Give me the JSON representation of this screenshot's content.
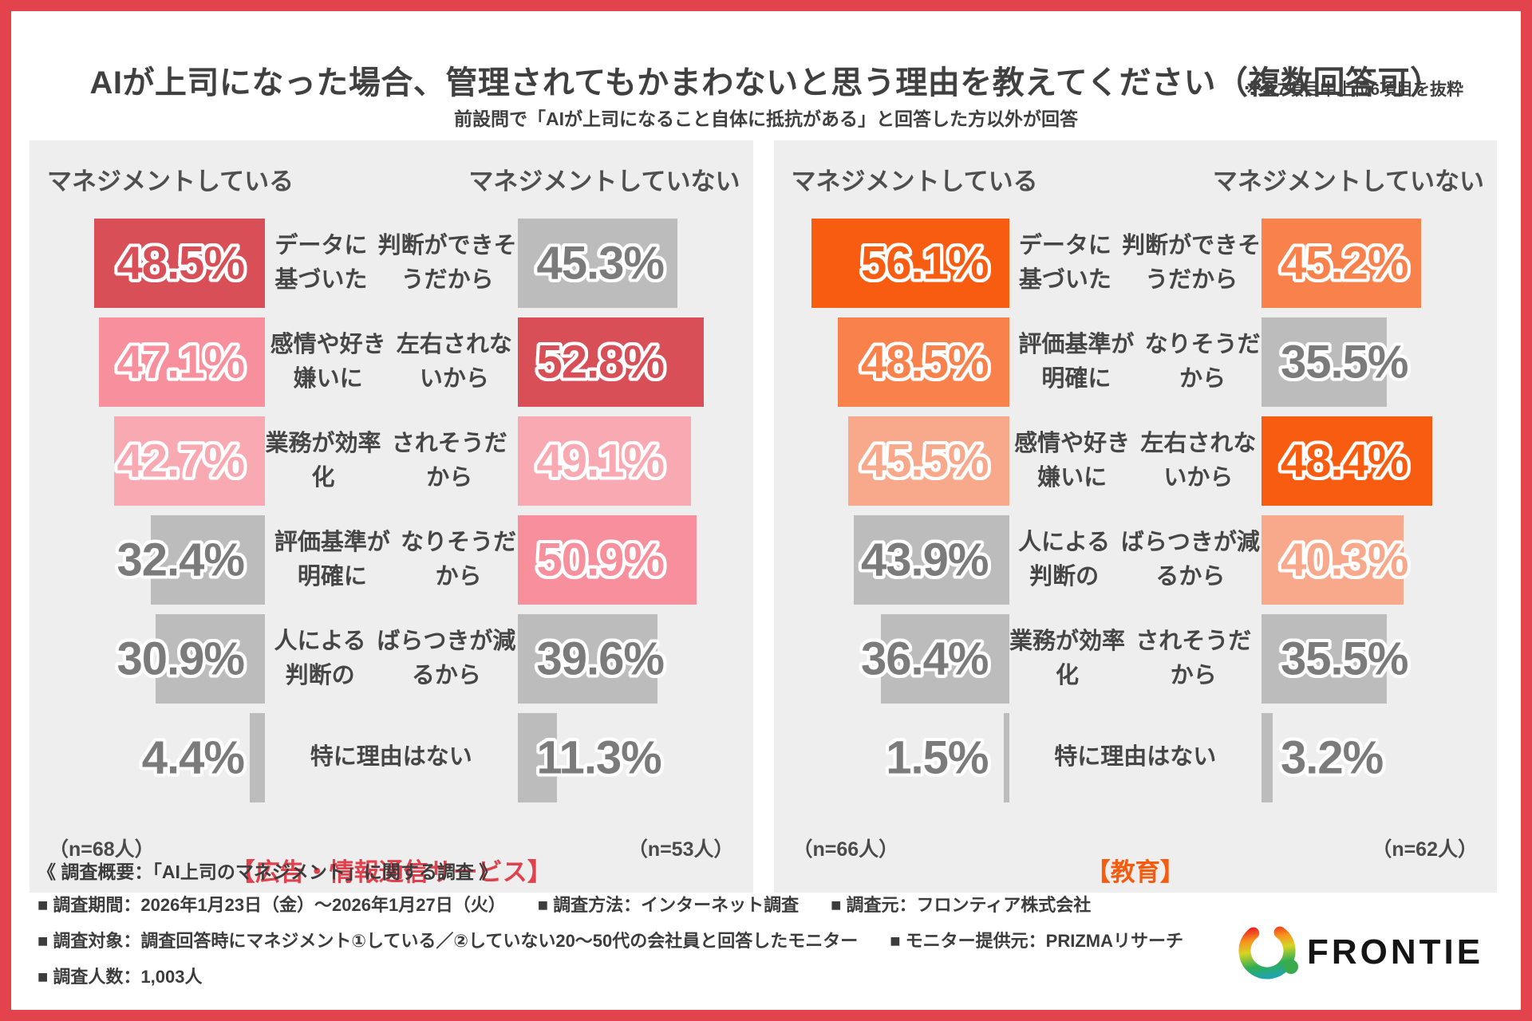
{
  "header": {
    "title": "AIが上司になった場合、管理されてもかまわないと思う理由を教えてください（複数回答可）",
    "note": "※全7項目中上位6項目を抜粋",
    "subtitle": "前設問で「AIが上司になること自体に抵抗がある」と回答した方以外が回答"
  },
  "columns": {
    "left": "マネジメントしている",
    "right": "マネジメントしていない"
  },
  "panels": [
    {
      "caption": "【広告・情報通信サービス】",
      "caption_color": "#e0414d",
      "n_left": "（n=68人）",
      "n_right": "（n=53人）",
      "palette": {
        "rank1": "#d84f58",
        "rank2": "#f78f9c",
        "rank3": "#f9a9b2",
        "gray": "#bcbcbc",
        "gray_text": "#7b7b7b"
      },
      "rows": [
        {
          "label": [
            "データに基づいた",
            "判断ができそうだから"
          ],
          "left": {
            "value": 48.5,
            "display": "48.5%",
            "tier": "rank1"
          },
          "right": {
            "value": 45.3,
            "display": "45.3%",
            "tier": "gray"
          }
        },
        {
          "label": [
            "感情や好き嫌いに",
            "左右されないから"
          ],
          "left": {
            "value": 47.1,
            "display": "47.1%",
            "tier": "rank2"
          },
          "right": {
            "value": 52.8,
            "display": "52.8%",
            "tier": "rank1"
          }
        },
        {
          "label": [
            "業務が効率化",
            "されそうだから"
          ],
          "left": {
            "value": 42.7,
            "display": "42.7%",
            "tier": "rank3"
          },
          "right": {
            "value": 49.1,
            "display": "49.1%",
            "tier": "rank3"
          }
        },
        {
          "label": [
            "評価基準が明確に",
            "なりそうだから"
          ],
          "left": {
            "value": 32.4,
            "display": "32.4%",
            "tier": "gray"
          },
          "right": {
            "value": 50.9,
            "display": "50.9%",
            "tier": "rank2"
          }
        },
        {
          "label": [
            "人による判断の",
            "ばらつきが減るから"
          ],
          "left": {
            "value": 30.9,
            "display": "30.9%",
            "tier": "gray"
          },
          "right": {
            "value": 39.6,
            "display": "39.6%",
            "tier": "gray"
          }
        },
        {
          "label": [
            "特に理由はない"
          ],
          "left": {
            "value": 4.4,
            "display": "4.4%",
            "tier": "gray"
          },
          "right": {
            "value": 11.3,
            "display": "11.3%",
            "tier": "gray"
          }
        }
      ]
    },
    {
      "caption": "【教育】",
      "caption_color": "#f55c0e",
      "n_left": "（n=66人）",
      "n_right": "（n=62人）",
      "palette": {
        "rank1": "#f75c10",
        "rank2": "#f9814b",
        "rank3": "#f9a98b",
        "gray": "#bcbcbc",
        "gray_text": "#7b7b7b"
      },
      "rows": [
        {
          "label": [
            "データに基づいた",
            "判断ができそうだから"
          ],
          "left": {
            "value": 56.1,
            "display": "56.1%",
            "tier": "rank1"
          },
          "right": {
            "value": 45.2,
            "display": "45.2%",
            "tier": "rank2"
          }
        },
        {
          "label": [
            "評価基準が明確に",
            "なりそうだから"
          ],
          "left": {
            "value": 48.5,
            "display": "48.5%",
            "tier": "rank2"
          },
          "right": {
            "value": 35.5,
            "display": "35.5%",
            "tier": "gray"
          }
        },
        {
          "label": [
            "感情や好き嫌いに",
            "左右されないから"
          ],
          "left": {
            "value": 45.5,
            "display": "45.5%",
            "tier": "rank3"
          },
          "right": {
            "value": 48.4,
            "display": "48.4%",
            "tier": "rank1"
          }
        },
        {
          "label": [
            "人による判断の",
            "ばらつきが減るから"
          ],
          "left": {
            "value": 43.9,
            "display": "43.9%",
            "tier": "gray"
          },
          "right": {
            "value": 40.3,
            "display": "40.3%",
            "tier": "rank3"
          }
        },
        {
          "label": [
            "業務が効率化",
            "されそうだから"
          ],
          "left": {
            "value": 36.4,
            "display": "36.4%",
            "tier": "gray"
          },
          "right": {
            "value": 35.5,
            "display": "35.5%",
            "tier": "gray"
          }
        },
        {
          "label": [
            "特に理由はない"
          ],
          "left": {
            "value": 1.5,
            "display": "1.5%",
            "tier": "gray"
          },
          "right": {
            "value": 3.2,
            "display": "3.2%",
            "tier": "gray"
          }
        }
      ]
    }
  ],
  "footer": {
    "overview": "《 調査概要：「AI上司のマネジメント」に関する調査 》",
    "lines": [
      [
        "■ 調査期間：2026年1月23日（金）～2026年1月27日（火）",
        "■ 調査方法：インターネット調査",
        "■ 調査元：フロンティア株式会社"
      ],
      [
        "■ 調査対象：調査回答時にマネジメント①している／②していない20～50代の会社員と回答したモニター",
        "■ モニター提供元：PRIZMAリサーチ"
      ],
      [
        "■ 調査人数：1,003人"
      ]
    ]
  },
  "logo": {
    "text": "FRONTIER"
  },
  "chart_data": [
    {
      "type": "bar",
      "title": "広告・情報通信サービス",
      "orientation": "horizontal-mirrored",
      "categories": [
        "データに基づいた判断ができそうだから",
        "感情や好き嫌いに左右されないから",
        "業務が効率化されそうだから",
        "評価基準が明確になりそうだから",
        "人による判断のばらつきが減るから",
        "特に理由はない"
      ],
      "series": [
        {
          "name": "マネジメントしている（n=68人）",
          "values": [
            48.5,
            47.1,
            42.7,
            32.4,
            30.9,
            4.4
          ]
        },
        {
          "name": "マネジメントしていない（n=53人）",
          "values": [
            45.3,
            52.8,
            49.1,
            50.9,
            39.6,
            11.3
          ]
        }
      ],
      "unit": "%",
      "xlim": [
        0,
        65
      ],
      "color_coding": "top3 values per column colored red/pink shades, others gray"
    },
    {
      "type": "bar",
      "title": "教育",
      "orientation": "horizontal-mirrored",
      "categories": [
        "データに基づいた判断ができそうだから",
        "評価基準が明確になりそうだから",
        "感情や好き嫌いに左右されないから",
        "人による判断のばらつきが減るから",
        "業務が効率化されそうだから",
        "特に理由はない"
      ],
      "series": [
        {
          "name": "マネジメントしている（n=66人）",
          "values": [
            56.1,
            48.5,
            45.5,
            43.9,
            36.4,
            1.5
          ]
        },
        {
          "name": "マネジメントしていない（n=62人）",
          "values": [
            45.2,
            35.5,
            48.4,
            40.3,
            35.5,
            3.2
          ]
        }
      ],
      "unit": "%",
      "xlim": [
        0,
        65
      ],
      "color_coding": "top3 values per column colored orange shades, others gray"
    }
  ]
}
